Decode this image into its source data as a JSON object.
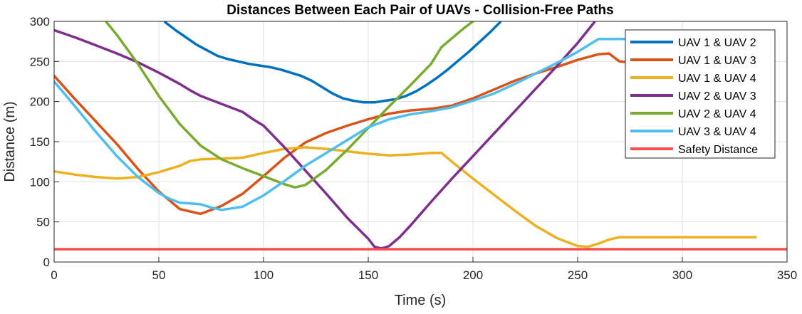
{
  "chart_data": {
    "type": "line",
    "title": "Distances Between Each Pair of UAVs - Collision-Free Paths",
    "xlabel": "Time (s)",
    "ylabel": "Distance (m)",
    "xlim": [
      0,
      350
    ],
    "ylim": [
      0,
      300
    ],
    "xticks": [
      0,
      50,
      100,
      150,
      200,
      250,
      300,
      350
    ],
    "yticks": [
      0,
      50,
      100,
      150,
      200,
      250,
      300
    ],
    "grid": true,
    "legend_position": "top-right",
    "series": [
      {
        "name": "UAV 1 & UAV 2",
        "color": "#0072BD",
        "x": [
          53,
          58,
          63,
          68,
          73,
          78,
          83,
          88,
          93,
          98,
          103,
          108,
          113,
          118,
          123,
          128,
          133,
          138,
          143,
          148,
          153,
          158,
          163,
          168,
          173,
          178,
          183,
          188,
          193,
          198,
          203,
          208,
          213
        ],
        "y": [
          299,
          289,
          280,
          271,
          264,
          257,
          253,
          250,
          247,
          245,
          243,
          240,
          236,
          232,
          226,
          218,
          210,
          204,
          201,
          199,
          199,
          201,
          203,
          207,
          213,
          221,
          230,
          240,
          251,
          262,
          274,
          286,
          299
        ]
      },
      {
        "name": "UAV 1 & UAV 3",
        "color": "#D95319",
        "x": [
          0,
          10,
          20,
          30,
          40,
          50,
          60,
          70,
          80,
          90,
          100,
          110,
          120,
          130,
          140,
          150,
          160,
          170,
          180,
          190,
          200,
          210,
          220,
          230,
          240,
          250,
          260,
          265,
          270,
          275
        ],
        "y": [
          232,
          203,
          175,
          147,
          116,
          88,
          66,
          60,
          70,
          85,
          107,
          130,
          149,
          161,
          170,
          178,
          185,
          189,
          191,
          195,
          204,
          215,
          226,
          235,
          243,
          252,
          259,
          260,
          250,
          249
        ]
      },
      {
        "name": "UAV 1 & UAV 4",
        "color": "#EDB120",
        "x": [
          0,
          10,
          20,
          30,
          40,
          50,
          60,
          65,
          70,
          80,
          90,
          100,
          110,
          120,
          130,
          140,
          150,
          160,
          170,
          180,
          185,
          190,
          200,
          210,
          220,
          230,
          240,
          250,
          255,
          260,
          265,
          270,
          280,
          290,
          300,
          310,
          320,
          335
        ],
        "y": [
          113,
          109,
          106,
          104,
          106,
          112,
          120,
          126,
          128,
          129,
          130,
          136,
          141,
          143,
          141,
          138,
          135,
          133,
          134,
          136,
          136,
          125,
          104,
          84,
          64,
          45,
          30,
          20,
          19,
          23,
          28,
          31,
          31,
          31,
          31,
          31,
          31,
          31
        ]
      },
      {
        "name": "UAV 2 & UAV 3",
        "color": "#7E2F8E",
        "x": [
          0,
          10,
          20,
          30,
          40,
          50,
          60,
          65,
          70,
          80,
          90,
          95,
          100,
          110,
          120,
          130,
          140,
          150,
          153,
          156,
          158,
          160,
          165,
          170,
          180,
          190,
          200,
          210,
          220,
          230,
          240,
          250,
          258
        ],
        "y": [
          289,
          280,
          270,
          260,
          249,
          236,
          222,
          214,
          207,
          197,
          187,
          178,
          170,
          143,
          114,
          85,
          55,
          29,
          19,
          17,
          18,
          20,
          31,
          45,
          75,
          104,
          132,
          160,
          188,
          216,
          244,
          273,
          299
        ]
      },
      {
        "name": "UAV 2 & UAV 4",
        "color": "#77AC30",
        "x": [
          25,
          30,
          40,
          50,
          60,
          70,
          80,
          90,
          100,
          110,
          115,
          120,
          130,
          140,
          150,
          160,
          170,
          180,
          185,
          190,
          195,
          200
        ],
        "y": [
          299,
          283,
          247,
          207,
          172,
          145,
          128,
          117,
          107,
          97,
          93,
          96,
          115,
          140,
          167,
          194,
          220,
          247,
          268,
          279,
          290,
          300
        ]
      },
      {
        "name": "UAV 3 & UAV 4",
        "color": "#4DBEEE",
        "x": [
          0,
          10,
          20,
          30,
          40,
          50,
          55,
          60,
          70,
          75,
          80,
          90,
          100,
          110,
          120,
          130,
          140,
          150,
          160,
          170,
          180,
          190,
          200,
          210,
          220,
          230,
          240,
          250,
          260,
          270,
          280,
          282
        ],
        "y": [
          225,
          194,
          162,
          132,
          106,
          86,
          79,
          74,
          72,
          68,
          65,
          69,
          83,
          101,
          120,
          136,
          152,
          168,
          178,
          184,
          188,
          193,
          201,
          210,
          222,
          235,
          248,
          262,
          278,
          278,
          278,
          278
        ]
      },
      {
        "name": "Safety Distance",
        "color": "#FF4D4D",
        "x": [
          0,
          350
        ],
        "y": [
          16,
          16
        ]
      }
    ]
  }
}
